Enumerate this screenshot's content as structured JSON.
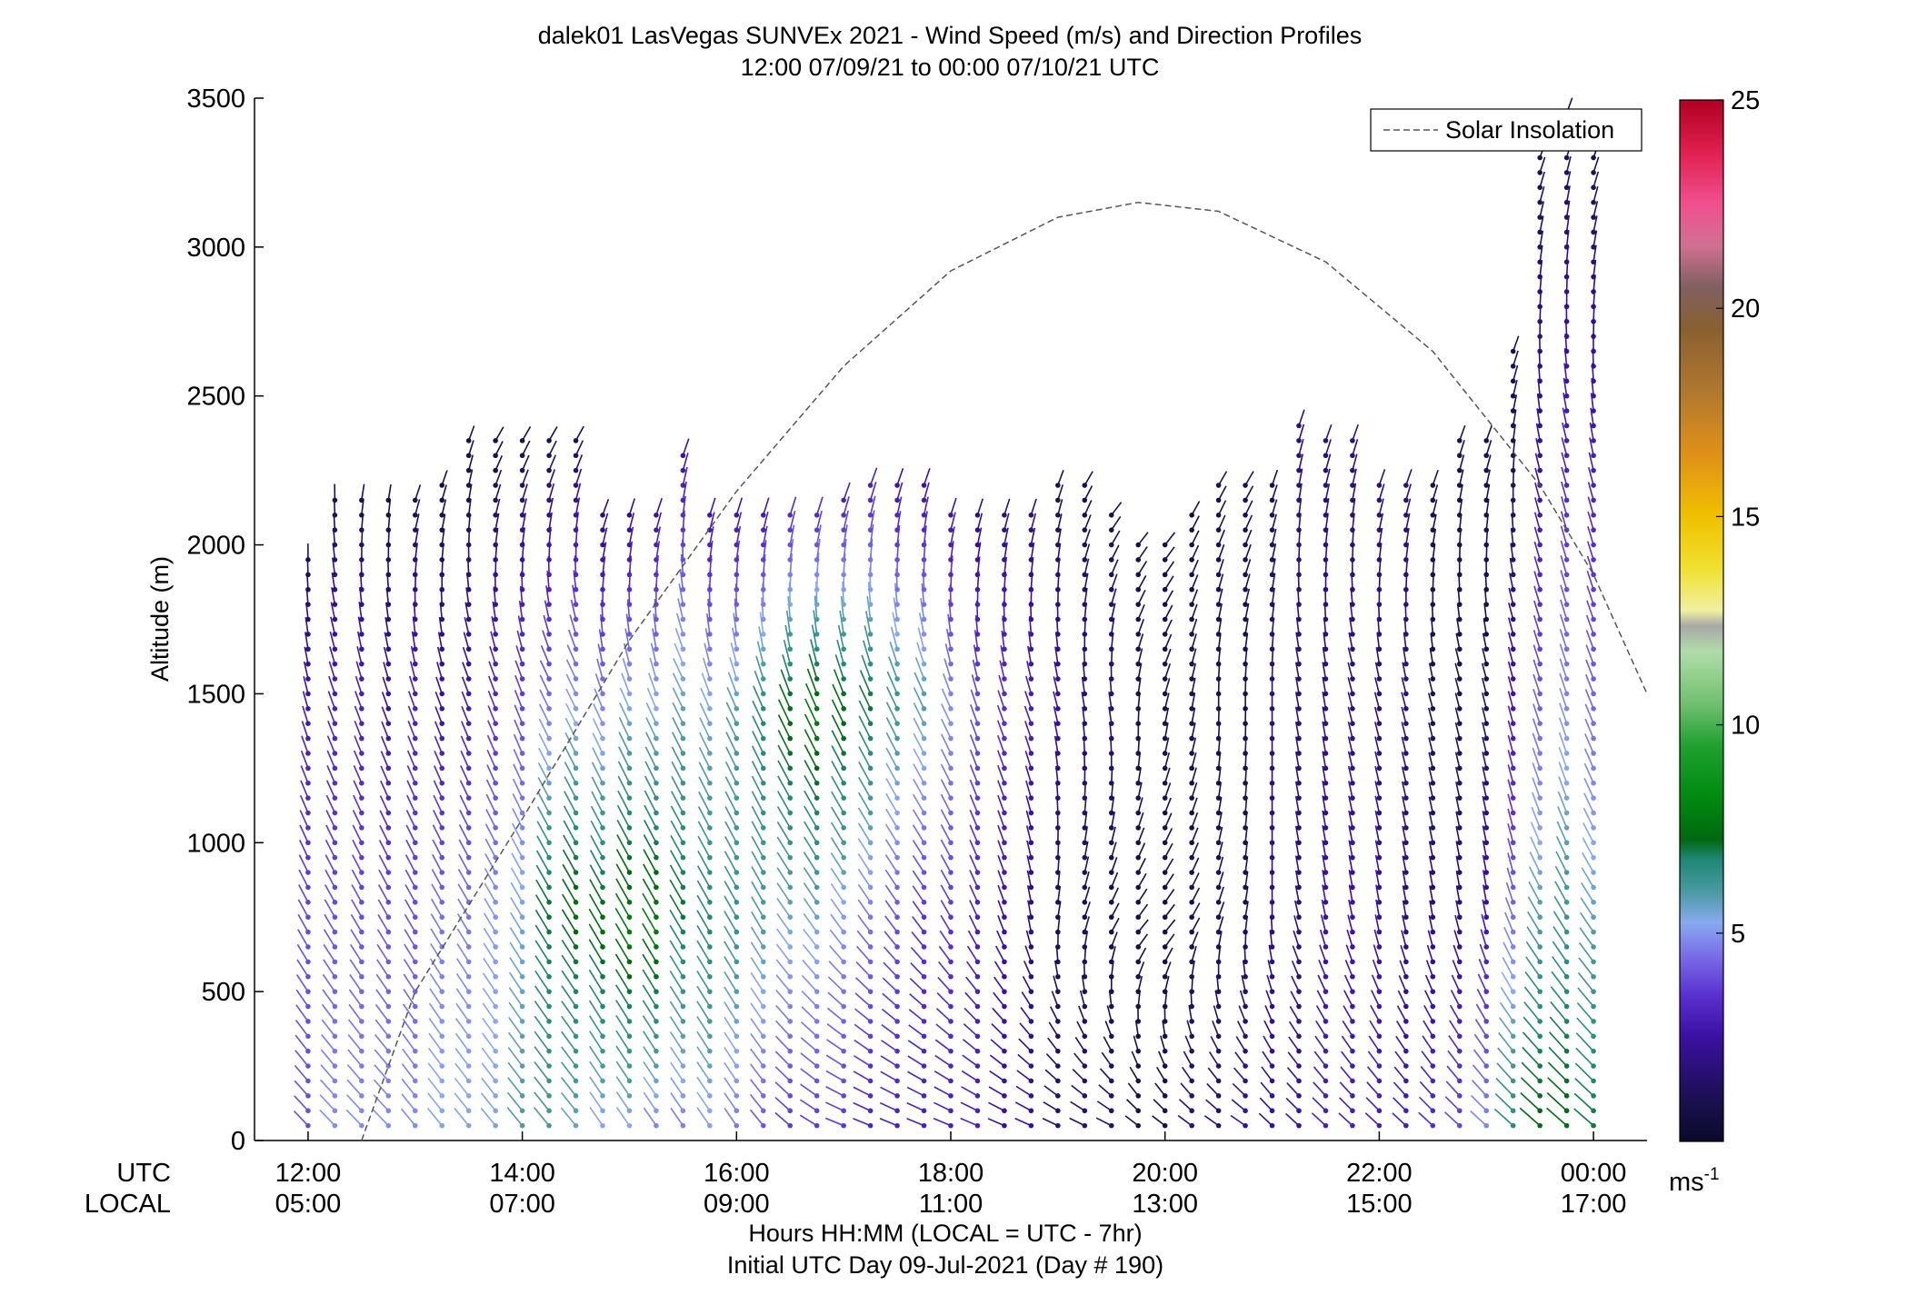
{
  "chart_data": {
    "type": "wind-profile",
    "title": "dalek01 LasVegas SUNVEx 2021 - Wind Speed (m/s) and Direction Profiles",
    "subtitle": "12:00 07/09/21 to 00:00 07/10/21  UTC",
    "ylabel": "Altitude (m)",
    "ylim": [
      0,
      3500
    ],
    "yticks": [
      "0",
      "500",
      "1000",
      "1500",
      "2000",
      "2500",
      "3000",
      "3500"
    ],
    "xlim_hours": [
      11.5,
      24.5
    ],
    "x_ticks": [
      {
        "hour": 12,
        "utc": "12:00",
        "local": "05:00"
      },
      {
        "hour": 14,
        "utc": "14:00",
        "local": "07:00"
      },
      {
        "hour": 16,
        "utc": "16:00",
        "local": "09:00"
      },
      {
        "hour": 18,
        "utc": "18:00",
        "local": "11:00"
      },
      {
        "hour": 20,
        "utc": "20:00",
        "local": "13:00"
      },
      {
        "hour": 22,
        "utc": "22:00",
        "local": "15:00"
      },
      {
        "hour": 24,
        "utc": "00:00",
        "local": "17:00"
      }
    ],
    "utc_row_label": "UTC",
    "local_row_label": "LOCAL",
    "xlabel": "Hours HH:MM  (LOCAL = UTC - 7hr)",
    "xlabel2": "Initial UTC Day 09-Jul-2021 (Day # 190)",
    "legend": {
      "label": "Solar Insolation",
      "position": "top-right"
    },
    "colorbar": {
      "range": [
        0,
        25
      ],
      "ticks": [
        "5",
        "10",
        "15",
        "20",
        "25"
      ],
      "unit_base": "ms",
      "unit_exp": "-1"
    },
    "solar_insolation": [
      [
        12.5,
        0
      ],
      [
        13.0,
        500
      ],
      [
        14.0,
        1080
      ],
      [
        15.0,
        1680
      ],
      [
        16.0,
        2180
      ],
      [
        17.0,
        2600
      ],
      [
        18.0,
        2920
      ],
      [
        19.0,
        3100
      ],
      [
        19.75,
        3150
      ],
      [
        20.5,
        3120
      ],
      [
        21.5,
        2950
      ],
      [
        22.5,
        2650
      ],
      [
        23.5,
        2200
      ],
      [
        24.0,
        1900
      ],
      [
        24.5,
        1500
      ]
    ],
    "profiles": [
      {
        "t": 12.0,
        "top": 1960,
        "s": [
          3.5,
          3.5,
          2.5,
          1.0
        ],
        "d": [
          -45,
          -30,
          -20,
          0
        ]
      },
      {
        "t": 12.25,
        "top": 2180,
        "s": [
          4.5,
          3.5,
          2.5,
          1.0
        ],
        "d": [
          -45,
          -30,
          -20,
          0
        ]
      },
      {
        "t": 12.5,
        "top": 2180,
        "s": [
          4.5,
          3.5,
          2.5,
          1.0
        ],
        "d": [
          -45,
          -30,
          -20,
          10
        ]
      },
      {
        "t": 12.75,
        "top": 2180,
        "s": [
          4.5,
          3.5,
          2.0,
          0.8
        ],
        "d": [
          -45,
          -30,
          -20,
          10
        ]
      },
      {
        "t": 13.0,
        "top": 2180,
        "s": [
          4.5,
          3.5,
          2.5,
          1.0
        ],
        "d": [
          -40,
          -30,
          -20,
          20
        ]
      },
      {
        "t": 13.25,
        "top": 2220,
        "s": [
          5.0,
          4.0,
          2.0,
          0.8
        ],
        "d": [
          -40,
          -30,
          -20,
          20
        ]
      },
      {
        "t": 13.5,
        "top": 2350,
        "s": [
          5.0,
          4.0,
          2.0,
          0.8
        ],
        "d": [
          -40,
          -30,
          -20,
          20
        ]
      },
      {
        "t": 13.75,
        "top": 2350,
        "s": [
          5.0,
          4.5,
          2.5,
          0.8
        ],
        "d": [
          -40,
          -30,
          -20,
          30
        ]
      },
      {
        "t": 14.0,
        "top": 2350,
        "s": [
          5.5,
          5.0,
          3.0,
          1.0
        ],
        "d": [
          -40,
          -30,
          -20,
          30
        ]
      },
      {
        "t": 14.25,
        "top": 2350,
        "s": [
          5.5,
          7.0,
          3.5,
          1.0
        ],
        "d": [
          -40,
          -30,
          -25,
          30
        ]
      },
      {
        "t": 14.5,
        "top": 2370,
        "s": [
          5.0,
          7.5,
          4.0,
          1.0
        ],
        "d": [
          -40,
          -30,
          -25,
          30
        ]
      },
      {
        "t": 14.75,
        "top": 2100,
        "s": [
          4.5,
          7.5,
          4.5,
          1.5
        ],
        "d": [
          -35,
          -30,
          -25,
          20
        ]
      },
      {
        "t": 15.0,
        "top": 2140,
        "s": [
          4.5,
          8.0,
          5.0,
          1.5
        ],
        "d": [
          -35,
          -30,
          -25,
          20
        ]
      },
      {
        "t": 15.25,
        "top": 2120,
        "s": [
          4.0,
          8.0,
          5.0,
          2.0
        ],
        "d": [
          -35,
          -30,
          -25,
          20
        ]
      },
      {
        "t": 15.5,
        "top": 2320,
        "s": [
          4.0,
          7.0,
          5.0,
          2.0
        ],
        "d": [
          -35,
          -30,
          -25,
          20
        ]
      },
      {
        "t": 15.75,
        "top": 2140,
        "s": [
          4.5,
          6.5,
          5.0,
          2.0
        ],
        "d": [
          -35,
          -30,
          -25,
          20
        ]
      },
      {
        "t": 16.0,
        "top": 2140,
        "s": [
          4.0,
          6.0,
          5.5,
          2.0
        ],
        "d": [
          -35,
          -30,
          -25,
          20
        ]
      },
      {
        "t": 16.25,
        "top": 2140,
        "s": [
          3.5,
          5.5,
          6.5,
          2.0
        ],
        "d": [
          -40,
          -30,
          -25,
          20
        ]
      },
      {
        "t": 16.5,
        "top": 2140,
        "s": [
          3.0,
          5.0,
          7.5,
          2.5
        ],
        "d": [
          -50,
          -35,
          -25,
          20
        ]
      },
      {
        "t": 16.75,
        "top": 2140,
        "s": [
          3.0,
          5.0,
          8.0,
          2.5
        ],
        "d": [
          -60,
          -35,
          -25,
          20
        ]
      },
      {
        "t": 17.0,
        "top": 2160,
        "s": [
          3.0,
          4.5,
          7.5,
          2.5
        ],
        "d": [
          -70,
          -35,
          -25,
          20
        ]
      },
      {
        "t": 17.25,
        "top": 2200,
        "s": [
          2.5,
          4.0,
          7.0,
          2.5
        ],
        "d": [
          -70,
          -35,
          -25,
          20
        ]
      },
      {
        "t": 17.5,
        "top": 2220,
        "s": [
          2.5,
          3.5,
          6.0,
          2.0
        ],
        "d": [
          -70,
          -35,
          -25,
          20
        ]
      },
      {
        "t": 17.75,
        "top": 2220,
        "s": [
          2.5,
          3.0,
          5.5,
          2.0
        ],
        "d": [
          -70,
          -35,
          -25,
          20
        ]
      },
      {
        "t": 18.0,
        "top": 2140,
        "s": [
          2.5,
          3.0,
          4.5,
          2.0
        ],
        "d": [
          -70,
          -30,
          -25,
          20
        ]
      },
      {
        "t": 18.25,
        "top": 2140,
        "s": [
          2.5,
          2.5,
          3.5,
          1.5
        ],
        "d": [
          -70,
          -25,
          -20,
          20
        ]
      },
      {
        "t": 18.5,
        "top": 2140,
        "s": [
          2.0,
          2.0,
          3.0,
          1.5
        ],
        "d": [
          -70,
          -20,
          -20,
          20
        ]
      },
      {
        "t": 18.75,
        "top": 2140,
        "s": [
          2.0,
          1.5,
          2.5,
          1.5
        ],
        "d": [
          -70,
          -10,
          -20,
          20
        ]
      },
      {
        "t": 19.0,
        "top": 2200,
        "s": [
          1.5,
          1.0,
          2.0,
          1.0
        ],
        "d": [
          -70,
          10,
          -15,
          20
        ]
      },
      {
        "t": 19.25,
        "top": 2200,
        "s": [
          1.5,
          1.0,
          1.5,
          1.0
        ],
        "d": [
          -70,
          20,
          -10,
          30
        ]
      },
      {
        "t": 19.5,
        "top": 2140,
        "s": [
          1.5,
          0.8,
          1.5,
          1.0
        ],
        "d": [
          -70,
          30,
          -10,
          40
        ]
      },
      {
        "t": 19.75,
        "top": 2040,
        "s": [
          1.0,
          0.8,
          1.0,
          0.8
        ],
        "d": [
          -60,
          40,
          0,
          40
        ]
      },
      {
        "t": 20.0,
        "top": 2040,
        "s": [
          1.0,
          0.8,
          1.0,
          0.8
        ],
        "d": [
          -60,
          40,
          10,
          40
        ]
      },
      {
        "t": 20.25,
        "top": 2140,
        "s": [
          1.5,
          1.0,
          1.0,
          0.8
        ],
        "d": [
          -60,
          30,
          10,
          30
        ]
      },
      {
        "t": 20.5,
        "top": 2200,
        "s": [
          1.5,
          1.0,
          1.0,
          1.0
        ],
        "d": [
          -60,
          20,
          0,
          30
        ]
      },
      {
        "t": 20.75,
        "top": 2200,
        "s": [
          2.0,
          1.0,
          1.0,
          1.0
        ],
        "d": [
          -60,
          10,
          0,
          30
        ]
      },
      {
        "t": 21.0,
        "top": 2240,
        "s": [
          2.0,
          1.5,
          1.5,
          1.0
        ],
        "d": [
          -50,
          0,
          0,
          20
        ]
      },
      {
        "t": 21.25,
        "top": 2440,
        "s": [
          2.0,
          1.5,
          1.5,
          1.5
        ],
        "d": [
          -50,
          -10,
          -10,
          20
        ]
      },
      {
        "t": 21.5,
        "top": 2360,
        "s": [
          2.5,
          2.0,
          1.5,
          1.5
        ],
        "d": [
          -50,
          -10,
          -10,
          20
        ]
      },
      {
        "t": 21.75,
        "top": 2360,
        "s": [
          2.5,
          2.0,
          1.5,
          1.5
        ],
        "d": [
          -50,
          -10,
          -15,
          20
        ]
      },
      {
        "t": 22.0,
        "top": 2220,
        "s": [
          2.5,
          2.0,
          1.5,
          1.5
        ],
        "d": [
          -50,
          -10,
          -15,
          20
        ]
      },
      {
        "t": 22.25,
        "top": 2220,
        "s": [
          2.5,
          1.5,
          1.5,
          1.5
        ],
        "d": [
          -50,
          -10,
          -15,
          20
        ]
      },
      {
        "t": 22.5,
        "top": 2220,
        "s": [
          3.0,
          1.5,
          1.0,
          1.0
        ],
        "d": [
          -50,
          -10,
          -15,
          20
        ]
      },
      {
        "t": 22.75,
        "top": 2360,
        "s": [
          3.5,
          1.5,
          1.0,
          1.0
        ],
        "d": [
          -50,
          -10,
          -15,
          20
        ]
      },
      {
        "t": 23.0,
        "top": 2360,
        "s": [
          4.5,
          2.0,
          1.0,
          1.0
        ],
        "d": [
          -50,
          -10,
          -15,
          20
        ]
      },
      {
        "t": 23.25,
        "top": 2660,
        "s": [
          6.5,
          3.5,
          1.5,
          1.0
        ],
        "d": [
          -50,
          -15,
          -15,
          20
        ]
      },
      {
        "t": 23.5,
        "top": 3320,
        "s": [
          7.5,
          4.5,
          2.0,
          1.0
        ],
        "d": [
          -50,
          -20,
          -15,
          20
        ]
      },
      {
        "t": 23.75,
        "top": 3450,
        "s": [
          7.5,
          5.0,
          2.5,
          1.0
        ],
        "d": [
          -50,
          -20,
          -15,
          20
        ]
      },
      {
        "t": 24.0,
        "top": 3300,
        "s": [
          7.0,
          4.5,
          2.5,
          1.0
        ],
        "d": [
          -50,
          -25,
          -15,
          20
        ]
      }
    ]
  }
}
